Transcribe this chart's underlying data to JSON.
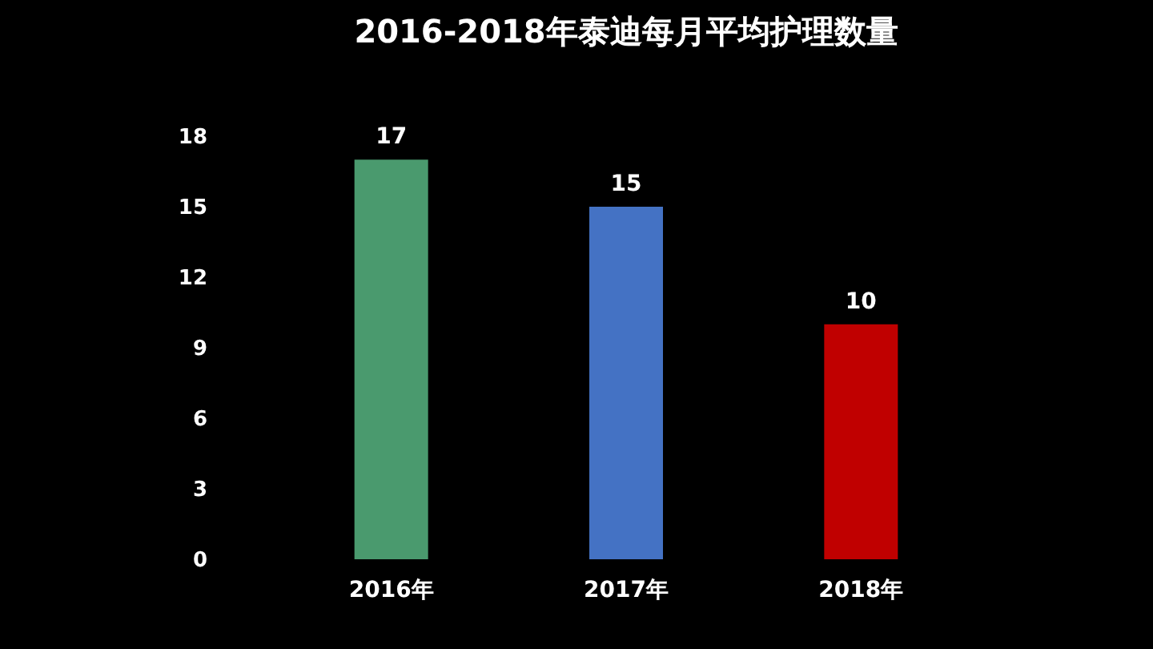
{
  "chart_data": {
    "type": "bar",
    "title": "2016-2018年泰迪每月平均护理数量",
    "categories": [
      "2016年",
      "2017年",
      "2018年"
    ],
    "values": [
      17,
      15,
      10
    ],
    "colors": [
      "#4a9a6e",
      "#4472c4",
      "#c00000"
    ],
    "ylim": [
      0,
      18
    ],
    "yticks": [
      0,
      3,
      6,
      9,
      12,
      15,
      18
    ],
    "grid": false,
    "data_labels": true
  }
}
